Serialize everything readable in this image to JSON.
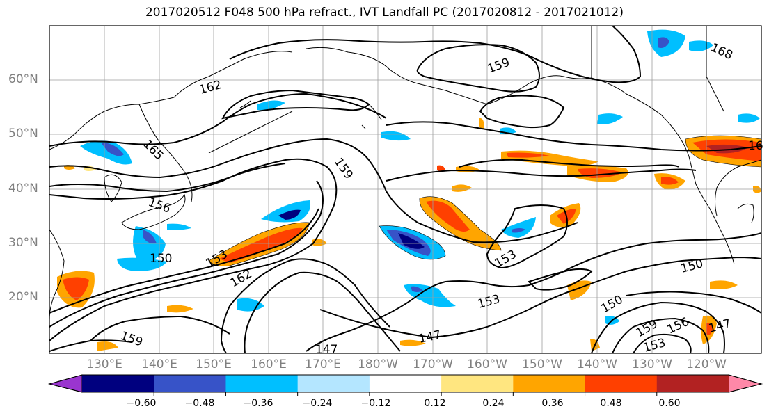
{
  "title": "2017020512 F048 500 hPa refract., IVT Landfall PC (2017020812 - 2017021012)",
  "lat_labels": [
    "60°N",
    "50°N",
    "40°N",
    "30°N",
    "20°N"
  ],
  "lon_labels": [
    "130°E",
    "140°E",
    "150°E",
    "160°E",
    "170°E",
    "180°W",
    "170°W",
    "160°W",
    "150°W",
    "140°W",
    "130°W",
    "120°W"
  ],
  "contour_labels": [
    "159",
    "162",
    "165",
    "168",
    "153",
    "150",
    "147",
    "156",
    "159",
    "162",
    "153",
    "150",
    "147",
    "153",
    "150",
    "156",
    "159",
    "153",
    "147",
    "159",
    "16"
  ],
  "colorbar": {
    "ticks": [
      "−0.60",
      "−0.48",
      "−0.36",
      "−0.24",
      "−0.12",
      "0.12",
      "0.24",
      "0.36",
      "0.48",
      "0.60"
    ],
    "colors": [
      "#9a35cf",
      "#00007f",
      "#3753c8",
      "#00bfff",
      "#b4e6ff",
      "#ffffff",
      "#ffe680",
      "#ffa500",
      "#ff4000",
      "#b22222",
      "#ff88a8"
    ]
  }
}
